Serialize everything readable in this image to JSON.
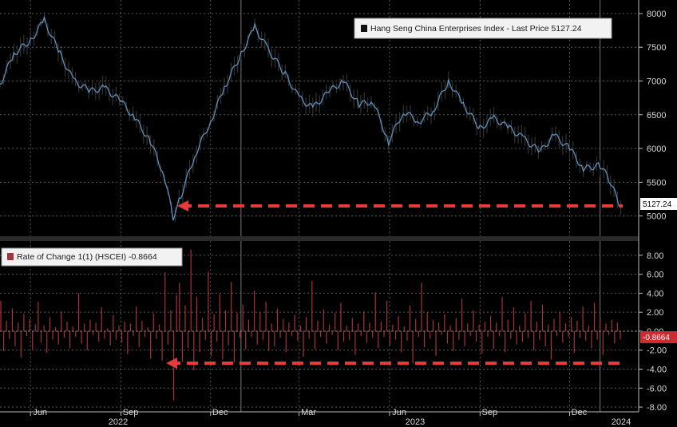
{
  "colors": {
    "background": "#000000",
    "grid": "#5a5a5a",
    "price_line": "#5e8fb8",
    "price_candle": "#2f2f2f",
    "roc_bar": "#a8323a",
    "arrow": "#e53b3b",
    "tag_bg": "#ffffff",
    "roc_tag_bg": "#cc2b32"
  },
  "x_axis": {
    "month_ticks": [
      "Jun",
      "Sep",
      "Dec",
      "Mar",
      "Jun",
      "Sep",
      "Dec"
    ],
    "year_ticks": [
      "2022",
      "2023",
      "2024"
    ]
  },
  "chart_data": [
    {
      "type": "line",
      "title": "Hang Seng China Enterprises Index - Last Price 5127.24",
      "legend": "Hang Seng China Enterprises Index - Last Price 5127.24",
      "legend_position": "top-right",
      "last_value_tag": "5127.24",
      "y_ticks": [
        "8000",
        "7500",
        "7000",
        "6500",
        "6000",
        "5500",
        "5000"
      ],
      "ylim": [
        4700,
        8200
      ],
      "grid": true,
      "x_range": [
        "2022-05-01",
        "2024-01-24"
      ],
      "x": [
        "2022-05-01",
        "2022-05-15",
        "2022-06-01",
        "2022-06-15",
        "2022-07-01",
        "2022-07-15",
        "2022-08-01",
        "2022-08-15",
        "2022-09-01",
        "2022-09-15",
        "2022-10-01",
        "2022-10-15",
        "2022-10-24",
        "2022-11-01",
        "2022-11-15",
        "2022-12-01",
        "2022-12-15",
        "2023-01-01",
        "2023-01-15",
        "2023-01-27",
        "2023-02-15",
        "2023-03-01",
        "2023-03-15",
        "2023-04-01",
        "2023-04-15",
        "2023-05-01",
        "2023-05-15",
        "2023-05-31",
        "2023-06-15",
        "2023-07-01",
        "2023-07-15",
        "2023-07-31",
        "2023-08-15",
        "2023-09-01",
        "2023-09-15",
        "2023-10-01",
        "2023-10-15",
        "2023-11-01",
        "2023-11-15",
        "2023-12-01",
        "2023-12-15",
        "2024-01-01",
        "2024-01-10",
        "2024-01-22"
      ],
      "values": [
        6950,
        7400,
        7600,
        7900,
        7400,
        7000,
        6850,
        6900,
        6700,
        6450,
        6100,
        5600,
        4980,
        5300,
        5900,
        6400,
        6900,
        7400,
        7800,
        7500,
        7100,
        6750,
        6600,
        6850,
        7000,
        6650,
        6700,
        6100,
        6550,
        6400,
        6550,
        7000,
        6650,
        6300,
        6450,
        6300,
        6150,
        5950,
        6200,
        6000,
        5700,
        5750,
        5550,
        5127.24
      ]
    },
    {
      "type": "bar",
      "title": "Rate of Change 1(1) (HSCEI) -0.8664",
      "legend": "Rate of Change 1(1) (HSCEI) -0.8664",
      "legend_position": "top-left",
      "last_value_tag": "-0.8664",
      "y_ticks": [
        "8.00",
        "6.00",
        "4.00",
        "2.00",
        "0.00",
        "-2.00",
        "-4.00",
        "-6.00",
        "-8.00"
      ],
      "ylim": [
        -8.5,
        9.5
      ],
      "grid": true,
      "x_range": [
        "2022-05-01",
        "2024-01-24"
      ],
      "values": [
        3.2,
        -2.1,
        1.1,
        -0.8,
        2.4,
        -1.6,
        0.9,
        -2.8,
        1.8,
        -0.5,
        1.3,
        -1.9,
        0.7,
        3.1,
        -1.2,
        0.6,
        -2.3,
        1.5,
        -0.9,
        0.4,
        -1.4,
        2.1,
        -0.7,
        1.0,
        -1.8,
        0.5,
        -0.6,
        4.0,
        -1.3,
        0.8,
        -2.0,
        1.2,
        -0.4,
        0.9,
        -1.1,
        2.5,
        -0.8,
        0.3,
        -1.5,
        1.7,
        -0.9,
        0.6,
        -1.2,
        1.0,
        -2.4,
        0.8,
        -0.5,
        2.6,
        -1.7,
        1.1,
        -0.6,
        0.4,
        -2.9,
        1.9,
        -0.8,
        0.7,
        -3.1,
        6.2,
        -1.4,
        2.2,
        -7.3,
        3.8,
        5.1,
        -3.2,
        2.7,
        -1.8,
        8.6,
        -4.1,
        3.6,
        -2.2,
        1.4,
        -0.9,
        6.3,
        -2.6,
        1.8,
        -1.1,
        3.9,
        -3.0,
        2.2,
        -1.5,
        5.2,
        -3.3,
        1.9,
        -0.7,
        2.8,
        -1.9,
        1.2,
        -0.6,
        4.3,
        -1.4,
        2.0,
        -0.9,
        3.1,
        -2.1,
        0.8,
        -1.6,
        2.4,
        -0.7,
        1.3,
        -2.2,
        0.9,
        -0.5,
        1.7,
        -1.0,
        0.6,
        -2.7,
        1.5,
        -0.8,
        5.3,
        -1.9,
        1.1,
        -0.6,
        2.3,
        -1.3,
        0.7,
        -0.4,
        1.9,
        -2.0,
        3.0,
        -1.1,
        0.6,
        -0.9,
        1.4,
        -2.5,
        0.8,
        -0.5,
        2.1,
        -1.2,
        0.9,
        -0.7,
        4.1,
        -1.8,
        1.0,
        -0.6,
        3.2,
        -1.5,
        0.7,
        -0.9,
        1.6,
        -2.2,
        0.5,
        -1.0,
        2.7,
        -3.4,
        1.3,
        -0.6,
        5.1,
        -1.7,
        2.0,
        -0.8,
        1.2,
        -2.6,
        0.9,
        -0.4,
        1.8,
        -1.3,
        0.6,
        -2.1,
        1.4,
        -0.9,
        3.4,
        -1.6,
        0.8,
        -0.5,
        2.2,
        -1.1,
        0.7,
        -2.4,
        1.0,
        -0.6,
        1.6,
        -1.9,
        0.9,
        -0.5,
        3.6,
        -2.2,
        1.2,
        -0.8,
        2.5,
        -1.4,
        0.6,
        -1.1,
        1.9,
        -0.7,
        3.2,
        -2.0,
        1.0,
        -0.9,
        2.8,
        -1.6,
        0.7,
        -3.0,
        1.3,
        -0.5,
        2.0,
        -1.2,
        0.8,
        -0.6,
        1.5,
        -2.3,
        1.1,
        -0.7,
        2.6,
        -1.0,
        0.6,
        -1.8,
        3.0,
        -0.9,
        1.4,
        -2.5,
        0.8,
        -0.4,
        1.2,
        -1.3,
        0.9,
        -0.8664
      ]
    }
  ]
}
